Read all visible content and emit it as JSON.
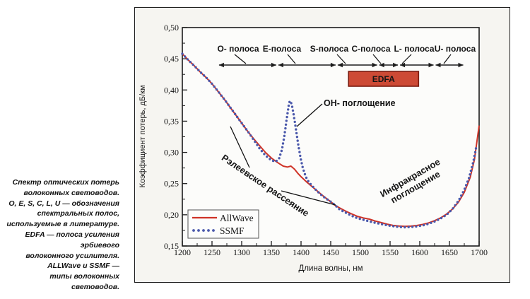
{
  "figure": {
    "caption_lines": [
      "Спектр оптических потерь",
      "волоконных световодов.",
      "O, E, S, C, L, U — обозначения",
      "спектральных полос,",
      "используемые в литературе.",
      "EDFA — полоса усиления",
      "эрбиевого",
      "волоконного усилителя.",
      "ALLWave и SSMF —",
      "типы волоконных световодов."
    ]
  },
  "chart_data": {
    "type": "line",
    "title": "",
    "xlabel": "Длина волны, нм",
    "ylabel": "Коэффициент потерь, дБ/км",
    "xlim": [
      1200,
      1700
    ],
    "ylim": [
      0.15,
      0.5
    ],
    "x_ticks": [
      1200,
      1250,
      1300,
      1350,
      1400,
      1450,
      1500,
      1550,
      1600,
      1650,
      1700
    ],
    "x_minor_step": 25,
    "y_ticks": [
      0.5,
      0.45,
      0.4,
      0.35,
      0.3,
      0.25,
      0.2,
      0.15
    ],
    "y_tick_labels": [
      "0,50",
      "0,45",
      "0,40",
      "0,35",
      "0,30",
      "0,25",
      "0,20",
      "0,15"
    ],
    "y_minor_step": 0.025,
    "grid": false,
    "legend_position": "lower-left",
    "colors": {
      "allwave": "#cf3327",
      "ssmf": "#4a58ab",
      "edfa_fill": "#cd4a35",
      "edfa_border": "#7a1c10",
      "axis": "#1c1c1c"
    },
    "bands": [
      {
        "label": "O- полоса",
        "from": 1260,
        "to": 1360
      },
      {
        "label": "E-полоса",
        "from": 1360,
        "to": 1460
      },
      {
        "label": "S-полоса",
        "from": 1460,
        "to": 1530
      },
      {
        "label": "C-полоса",
        "from": 1530,
        "to": 1565
      },
      {
        "label": "L- полоса",
        "from": 1565,
        "to": 1625
      },
      {
        "label": "U- полоса",
        "from": 1625,
        "to": 1675
      }
    ],
    "edfa": {
      "label": "EDFA",
      "from": 1480,
      "to": 1598
    },
    "annotations": {
      "oh": "ОН- поглощение",
      "rayleigh": "Рэлеевское рассеяние",
      "infrared_line1": "Инфракрасное",
      "infrared_line2": "поглощение"
    },
    "series": [
      {
        "name": "AllWave",
        "style": "solid",
        "color": "#cf3327",
        "points": [
          [
            1200,
            0.458
          ],
          [
            1210,
            0.448
          ],
          [
            1220,
            0.439
          ],
          [
            1230,
            0.429
          ],
          [
            1240,
            0.42
          ],
          [
            1250,
            0.41
          ],
          [
            1260,
            0.398
          ],
          [
            1270,
            0.386
          ],
          [
            1280,
            0.373
          ],
          [
            1290,
            0.36
          ],
          [
            1300,
            0.347
          ],
          [
            1310,
            0.334
          ],
          [
            1320,
            0.322
          ],
          [
            1330,
            0.311
          ],
          [
            1340,
            0.3
          ],
          [
            1350,
            0.291
          ],
          [
            1360,
            0.284
          ],
          [
            1370,
            0.278
          ],
          [
            1377,
            0.2765
          ],
          [
            1383,
            0.278
          ],
          [
            1389,
            0.273
          ],
          [
            1395,
            0.266
          ],
          [
            1400,
            0.261
          ],
          [
            1410,
            0.252
          ],
          [
            1420,
            0.244
          ],
          [
            1430,
            0.236
          ],
          [
            1440,
            0.228
          ],
          [
            1450,
            0.221
          ],
          [
            1456,
            0.216
          ],
          [
            1465,
            0.211
          ],
          [
            1475,
            0.206
          ],
          [
            1485,
            0.2015
          ],
          [
            1495,
            0.1975
          ],
          [
            1505,
            0.195
          ],
          [
            1515,
            0.193
          ],
          [
            1525,
            0.19
          ],
          [
            1535,
            0.1875
          ],
          [
            1545,
            0.185
          ],
          [
            1555,
            0.183
          ],
          [
            1565,
            0.182
          ],
          [
            1575,
            0.1815
          ],
          [
            1585,
            0.1818
          ],
          [
            1595,
            0.1828
          ],
          [
            1605,
            0.1845
          ],
          [
            1615,
            0.187
          ],
          [
            1625,
            0.1905
          ],
          [
            1635,
            0.195
          ],
          [
            1645,
            0.201
          ],
          [
            1655,
            0.209
          ],
          [
            1665,
            0.22
          ],
          [
            1675,
            0.236
          ],
          [
            1685,
            0.26
          ],
          [
            1692,
            0.288
          ],
          [
            1700,
            0.343
          ]
        ]
      },
      {
        "name": "SSMF",
        "style": "dotted",
        "color": "#4a58ab",
        "points": [
          [
            1200,
            0.458
          ],
          [
            1210,
            0.448
          ],
          [
            1220,
            0.439
          ],
          [
            1230,
            0.429
          ],
          [
            1240,
            0.42
          ],
          [
            1250,
            0.41
          ],
          [
            1260,
            0.398
          ],
          [
            1270,
            0.386
          ],
          [
            1280,
            0.373
          ],
          [
            1290,
            0.36
          ],
          [
            1300,
            0.347
          ],
          [
            1310,
            0.334
          ],
          [
            1320,
            0.3205
          ],
          [
            1330,
            0.3065
          ],
          [
            1340,
            0.295
          ],
          [
            1350,
            0.2875
          ],
          [
            1357,
            0.285
          ],
          [
            1363,
            0.29
          ],
          [
            1368,
            0.305
          ],
          [
            1372,
            0.327
          ],
          [
            1376,
            0.355
          ],
          [
            1379,
            0.374
          ],
          [
            1381,
            0.3825
          ],
          [
            1384,
            0.378
          ],
          [
            1387,
            0.364
          ],
          [
            1391,
            0.34
          ],
          [
            1395,
            0.314
          ],
          [
            1399,
            0.292
          ],
          [
            1403,
            0.275
          ],
          [
            1408,
            0.261
          ],
          [
            1413,
            0.2525
          ],
          [
            1419,
            0.246
          ],
          [
            1426,
            0.239
          ],
          [
            1434,
            0.232
          ],
          [
            1442,
            0.226
          ],
          [
            1450,
            0.221
          ],
          [
            1456,
            0.2165
          ],
          [
            1465,
            0.2085
          ],
          [
            1475,
            0.2035
          ],
          [
            1485,
            0.1985
          ],
          [
            1495,
            0.1945
          ],
          [
            1505,
            0.192
          ],
          [
            1515,
            0.1895
          ],
          [
            1525,
            0.1872
          ],
          [
            1535,
            0.1852
          ],
          [
            1545,
            0.1832
          ],
          [
            1555,
            0.1818
          ],
          [
            1565,
            0.1806
          ],
          [
            1575,
            0.18
          ],
          [
            1585,
            0.1804
          ],
          [
            1595,
            0.1814
          ],
          [
            1605,
            0.183
          ],
          [
            1615,
            0.1856
          ],
          [
            1625,
            0.1892
          ],
          [
            1635,
            0.194
          ],
          [
            1645,
            0.2
          ],
          [
            1655,
            0.209
          ],
          [
            1665,
            0.222
          ],
          [
            1675,
            0.24
          ],
          [
            1683,
            0.259
          ],
          [
            1690,
            0.284
          ],
          [
            1695,
            0.308
          ]
        ]
      }
    ]
  }
}
